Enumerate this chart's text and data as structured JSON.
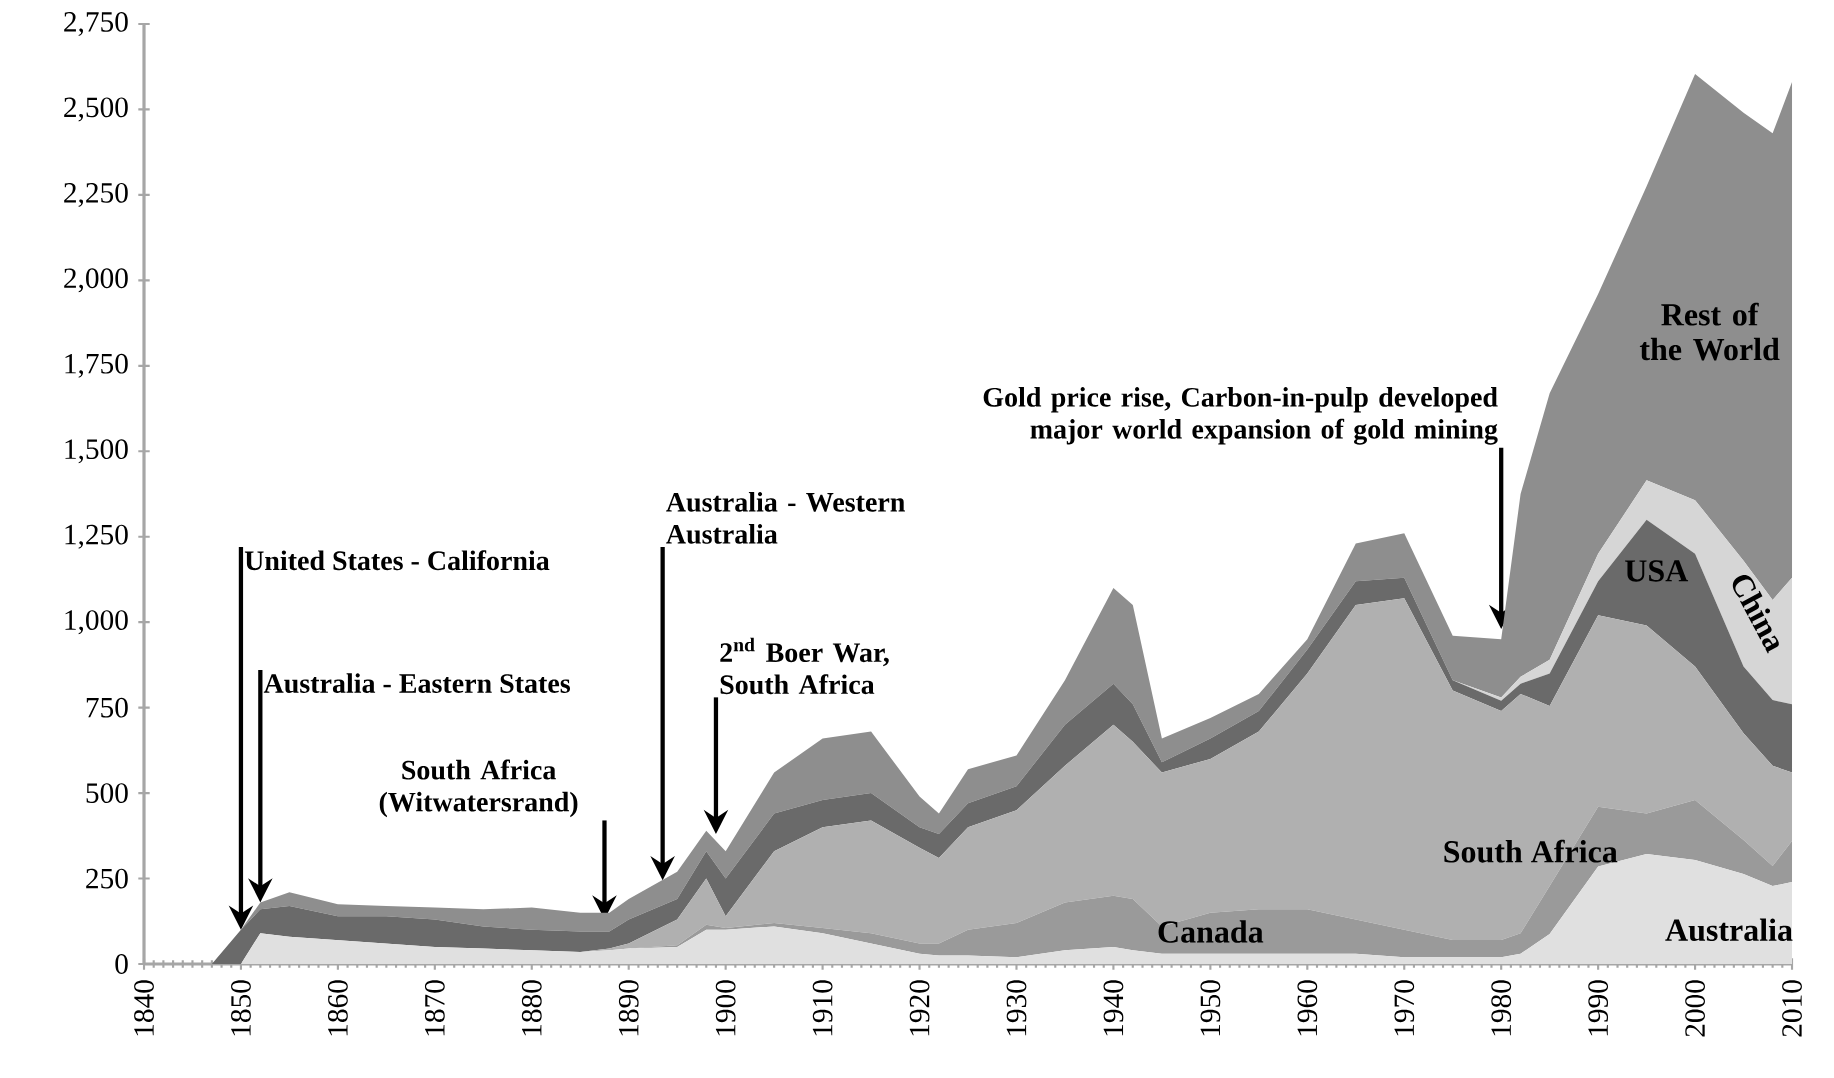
{
  "chart_data": {
    "type": "area",
    "stacked": true,
    "x": [
      1840,
      1847,
      1850,
      1852,
      1855,
      1860,
      1865,
      1870,
      1875,
      1880,
      1885,
      1888,
      1890,
      1895,
      1898,
      1900,
      1905,
      1910,
      1915,
      1920,
      1922,
      1925,
      1930,
      1935,
      1940,
      1942,
      1945,
      1950,
      1955,
      1960,
      1965,
      1970,
      1975,
      1980,
      1982,
      1985,
      1990,
      1995,
      2000,
      2005,
      2008,
      2010
    ],
    "xlim": [
      1840,
      2010
    ],
    "xticks": [
      1840,
      1850,
      1860,
      1870,
      1880,
      1890,
      1900,
      1910,
      1920,
      1930,
      1940,
      1950,
      1960,
      1970,
      1980,
      1990,
      2000,
      2010
    ],
    "ylim": [
      0,
      2750
    ],
    "yticks": [
      0,
      250,
      500,
      750,
      {
        "value": 1000,
        "label": "1,000"
      },
      {
        "value": 1250,
        "label": "1,250"
      },
      {
        "value": 1500,
        "label": "1,500"
      },
      {
        "value": 1750,
        "label": "1,750"
      },
      {
        "value": 2000,
        "label": "2,000"
      },
      {
        "value": 2250,
        "label": "2,250"
      },
      {
        "value": 2500,
        "label": "2,500"
      },
      {
        "value": 2750,
        "label": "2,750"
      }
    ],
    "series": [
      {
        "name": "Australia",
        "color": "#e0e0e0",
        "values": [
          0,
          0,
          0,
          90,
          80,
          70,
          60,
          50,
          45,
          40,
          35,
          40,
          45,
          50,
          100,
          100,
          110,
          90,
          60,
          30,
          25,
          25,
          20,
          40,
          50,
          40,
          30,
          30,
          30,
          30,
          30,
          20,
          20,
          20,
          30,
          88,
          285,
          322,
          304,
          263,
          228,
          240
        ]
      },
      {
        "name": "Canada",
        "color": "#9a9a9a",
        "values": [
          0,
          0,
          0,
          0,
          0,
          0,
          0,
          0,
          0,
          0,
          0,
          0,
          0,
          5,
          15,
          5,
          10,
          15,
          30,
          30,
          35,
          75,
          100,
          140,
          150,
          150,
          80,
          120,
          130,
          130,
          100,
          80,
          50,
          50,
          60,
          140,
          175,
          118,
          176,
          100,
          59,
          120
        ]
      },
      {
        "name": "South Africa",
        "color": "#b0b0b0",
        "values": [
          0,
          0,
          0,
          0,
          0,
          0,
          0,
          0,
          0,
          0,
          0,
          5,
          15,
          75,
          135,
          35,
          210,
          295,
          330,
          280,
          250,
          300,
          330,
          400,
          500,
          460,
          450,
          450,
          520,
          690,
          920,
          970,
          730,
          670,
          700,
          527,
          560,
          550,
          390,
          312,
          293,
          200
        ]
      },
      {
        "name": "USA",
        "color": "#6a6a6a",
        "values": [
          0,
          0,
          100,
          70,
          90,
          70,
          80,
          80,
          65,
          60,
          60,
          50,
          70,
          60,
          80,
          110,
          110,
          80,
          80,
          60,
          70,
          70,
          70,
          120,
          120,
          110,
          30,
          60,
          60,
          70,
          70,
          60,
          30,
          30,
          30,
          95,
          100,
          310,
          330,
          195,
          192,
          200
        ]
      },
      {
        "name": "China",
        "color": "#d6d6d6",
        "values": [
          0,
          0,
          0,
          0,
          0,
          0,
          0,
          0,
          0,
          0,
          0,
          0,
          0,
          0,
          0,
          0,
          0,
          0,
          0,
          0,
          0,
          0,
          0,
          0,
          0,
          0,
          0,
          0,
          0,
          0,
          0,
          0,
          0,
          10,
          20,
          40,
          80,
          115,
          157,
          310,
          293,
          370
        ]
      },
      {
        "name": "Rest of the World",
        "color": "#8e8e8e",
        "values": [
          0,
          0,
          0,
          20,
          40,
          35,
          30,
          35,
          50,
          65,
          55,
          55,
          60,
          80,
          60,
          80,
          120,
          180,
          180,
          90,
          60,
          100,
          90,
          130,
          280,
          290,
          70,
          60,
          50,
          30,
          110,
          130,
          130,
          170,
          535,
          780,
          760,
          860,
          1247,
          1310,
          1365,
          1450
        ]
      }
    ],
    "annotations": [
      {
        "text": "United States - California",
        "x": 1850,
        "y": 100
      },
      {
        "text": "Australia - Eastern States",
        "x": 1852,
        "y": 180
      },
      {
        "text": "South Africa (Witwatersrand)",
        "x": 1887.5,
        "y": 130
      },
      {
        "text": "Australia - Western Australia",
        "x": 1893.5,
        "y": 245
      },
      {
        "text": "2$^{nd}$ Boer War, South Africa",
        "x": 1899,
        "y": 380
      },
      {
        "text": "Gold price rise, Carbon-in-pulp developed major world expansion of gold mining",
        "x": 1980,
        "y": 980
      }
    ]
  }
}
